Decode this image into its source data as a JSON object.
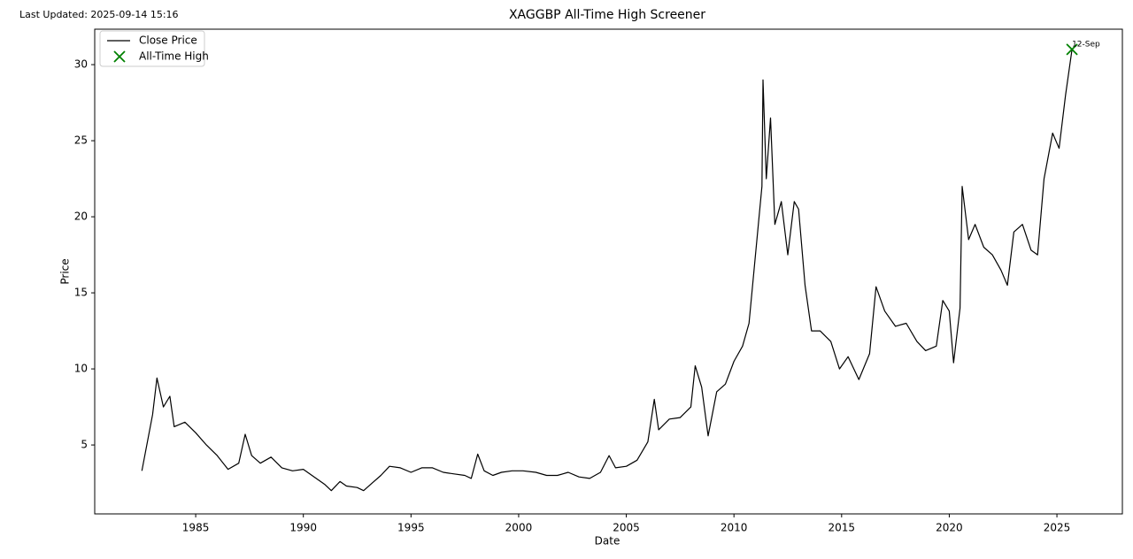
{
  "chart_data": {
    "type": "line",
    "title": "XAGGBP All-Time High Screener",
    "subtitle": "Last Updated: 2025-09-14 15:16",
    "x_label": "Date",
    "y_label": "Price",
    "xlim": [
      1980.31,
      2028.04
    ],
    "ylim": [
      0.47,
      32.33
    ],
    "xticks": [
      1985,
      1990,
      1995,
      2000,
      2005,
      2010,
      2015,
      2020,
      2025
    ],
    "yticks": [
      5,
      10,
      15,
      20,
      25,
      30
    ],
    "grid": false,
    "legend": "upper-left",
    "series": [
      {
        "name": "Close Price",
        "color": "#000000",
        "x": [
          1982.5,
          1983.0,
          1983.2,
          1983.5,
          1983.8,
          1984.0,
          1984.5,
          1985.0,
          1985.5,
          1986.0,
          1986.5,
          1987.0,
          1987.3,
          1987.6,
          1988.0,
          1988.5,
          1989.0,
          1989.5,
          1990.0,
          1990.5,
          1991.0,
          1991.3,
          1991.7,
          1992.0,
          1992.5,
          1992.8,
          1993.2,
          1993.6,
          1994.0,
          1994.5,
          1995.0,
          1995.5,
          1996.0,
          1996.5,
          1997.0,
          1997.5,
          1997.8,
          1998.1,
          1998.4,
          1998.8,
          1999.2,
          1999.7,
          2000.2,
          2000.8,
          2001.3,
          2001.8,
          2002.3,
          2002.8,
          2003.3,
          2003.8,
          2004.2,
          2004.5,
          2005.0,
          2005.5,
          2006.0,
          2006.3,
          2006.5,
          2007.0,
          2007.5,
          2008.0,
          2008.2,
          2008.5,
          2008.8,
          2009.2,
          2009.6,
          2010.0,
          2010.4,
          2010.7,
          2011.0,
          2011.3,
          2011.35,
          2011.5,
          2011.7,
          2011.9,
          2012.2,
          2012.5,
          2012.8,
          2013.0,
          2013.3,
          2013.6,
          2014.0,
          2014.5,
          2014.9,
          2015.3,
          2015.8,
          2016.3,
          2016.6,
          2017.0,
          2017.5,
          2018.0,
          2018.5,
          2018.9,
          2019.4,
          2019.7,
          2020.0,
          2020.2,
          2020.5,
          2020.6,
          2020.9,
          2021.2,
          2021.6,
          2022.0,
          2022.4,
          2022.7,
          2023.0,
          2023.4,
          2023.8,
          2024.1,
          2024.4,
          2024.8,
          2025.1,
          2025.4,
          2025.7
        ],
        "values": [
          3.3,
          7.0,
          9.4,
          7.5,
          8.2,
          6.2,
          6.5,
          5.8,
          5.0,
          4.3,
          3.4,
          3.8,
          5.7,
          4.3,
          3.8,
          4.2,
          3.5,
          3.3,
          3.4,
          2.9,
          2.4,
          2.0,
          2.6,
          2.3,
          2.2,
          2.0,
          2.5,
          3.0,
          3.6,
          3.5,
          3.2,
          3.5,
          3.5,
          3.2,
          3.1,
          3.0,
          2.8,
          4.4,
          3.3,
          3.0,
          3.2,
          3.3,
          3.3,
          3.2,
          3.0,
          3.0,
          3.2,
          2.9,
          2.8,
          3.2,
          4.3,
          3.5,
          3.6,
          4.0,
          5.2,
          8.0,
          6.0,
          6.7,
          6.8,
          7.5,
          10.2,
          8.8,
          5.6,
          8.5,
          9.0,
          10.5,
          11.5,
          13.0,
          17.5,
          22.0,
          29.0,
          22.5,
          26.5,
          19.5,
          21.0,
          17.5,
          21.0,
          20.5,
          15.5,
          12.5,
          12.5,
          11.8,
          10.0,
          10.8,
          9.3,
          11.0,
          15.4,
          13.8,
          12.8,
          13.0,
          11.8,
          11.2,
          11.5,
          14.5,
          13.8,
          10.4,
          14.0,
          22.0,
          18.5,
          19.5,
          18.0,
          17.5,
          16.5,
          15.5,
          19.0,
          19.5,
          17.8,
          17.5,
          22.5,
          25.5,
          24.5,
          28.0,
          31.0
        ]
      },
      {
        "name": "All-Time High",
        "color": "#008000",
        "marker": "x",
        "x": [
          2025.7
        ],
        "values": [
          31.0
        ]
      }
    ],
    "annotations": [
      {
        "text": "12-Sep"
      }
    ]
  }
}
